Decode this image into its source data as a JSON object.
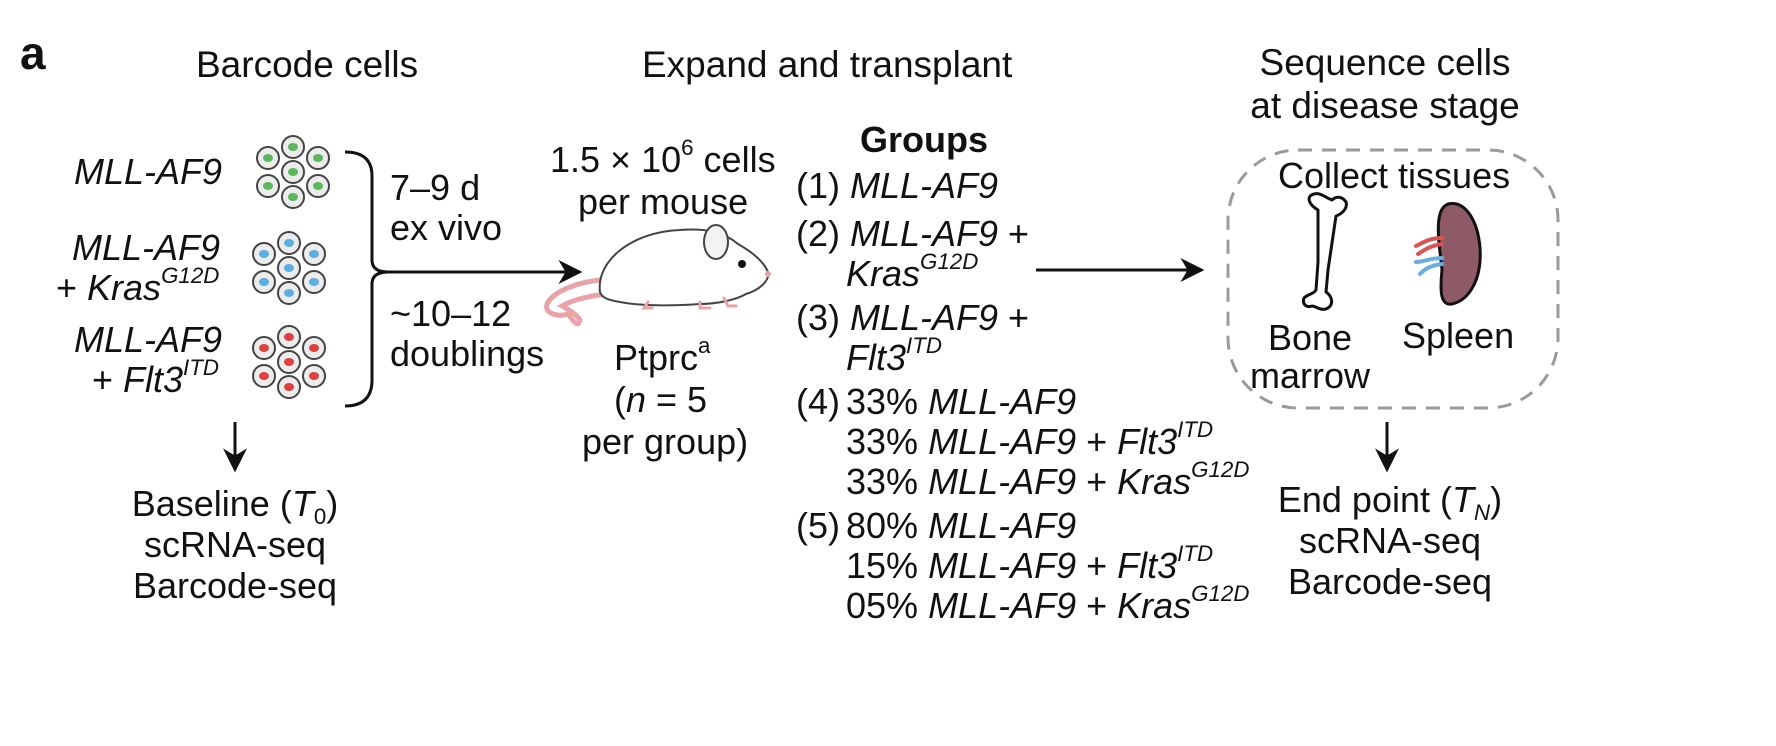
{
  "panel_letter": "a",
  "headers": {
    "barcode": "Barcode cells",
    "expand": "Expand and transplant",
    "sequence_l1": "Sequence cells",
    "sequence_l2": "at disease stage"
  },
  "cell_lines": [
    {
      "l1": "MLL-AF9",
      "l2_prefix": "",
      "l2": "",
      "l2_sup": "",
      "dot_color": "#5cb85c"
    },
    {
      "l1": "MLL-AF9",
      "l2_prefix": "+ ",
      "l2": "Kras",
      "l2_sup": "G12D",
      "dot_color": "#5aaee0"
    },
    {
      "l1": "MLL-AF9",
      "l2_prefix": "+ ",
      "l2": "Flt3",
      "l2_sup": "ITD",
      "dot_color": "#e0403f"
    }
  ],
  "culture": {
    "top_l1": "7–9 d",
    "top_l2": "ex vivo",
    "bottom_l1": "~10–12",
    "bottom_l2": "doublings"
  },
  "transplant": {
    "dose_prefix": "1.5 × 10",
    "dose_sup": "6",
    "dose_suffix": " cells",
    "dose_l2": "per mouse",
    "strain": "Ptprc",
    "strain_sup": "a",
    "n_open": "(",
    "n_var": "n",
    "n_rest": " = 5",
    "n_l2": "per group)"
  },
  "groups": {
    "title": "Groups",
    "g1": {
      "num": "(1) ",
      "name": "MLL-AF9"
    },
    "g2": {
      "num": "(2) ",
      "l1": "MLL-AF9",
      "l1_suffix": " +",
      "l2": "Kras",
      "l2_sup": "G12D"
    },
    "g3": {
      "num": "(3) ",
      "l1": "MLL-AF9",
      "l1_suffix": " +",
      "l2": "Flt3",
      "l2_sup": "ITD"
    },
    "g4": {
      "num": "(4) ",
      "rows": [
        {
          "pct": "33% ",
          "base": "MLL-AF9",
          "plus": "",
          "gene": "",
          "sup": ""
        },
        {
          "pct": "33% ",
          "base": "MLL-AF9",
          "plus": " + ",
          "gene": "Flt3",
          "sup": "ITD"
        },
        {
          "pct": "33% ",
          "base": "MLL-AF9",
          "plus": " + ",
          "gene": "Kras",
          "sup": "G12D"
        }
      ]
    },
    "g5": {
      "num": "(5) ",
      "rows": [
        {
          "pct": "80% ",
          "base": "MLL-AF9",
          "plus": "",
          "gene": "",
          "sup": ""
        },
        {
          "pct": "15% ",
          "base": "MLL-AF9",
          "plus": " + ",
          "gene": "Flt3",
          "sup": "ITD"
        },
        {
          "pct": "05% ",
          "base": "MLL-AF9",
          "plus": " + ",
          "gene": "Kras",
          "sup": "G12D"
        }
      ]
    }
  },
  "tissues": {
    "title": "Collect tissues",
    "bone_l1": "Bone",
    "bone_l2": "marrow",
    "spleen": "Spleen"
  },
  "baseline": {
    "l1_prefix": "Baseline (",
    "l1_var": "T",
    "l1_sub": "0",
    "l1_suffix": ")",
    "l2": "scRNA-seq",
    "l3": "Barcode-seq"
  },
  "endpoint": {
    "l1_prefix": "End point (",
    "l1_var": "T",
    "l1_sub": "N",
    "l1_suffix": ")",
    "l2": "scRNA-seq",
    "l3": "Barcode-seq"
  },
  "colors": {
    "cell_outline": "#444444",
    "cell_fill": "#ececec",
    "arrow": "#111111",
    "dashed_box": "#9a9a9a",
    "spleen": "#8e5a68",
    "vessel_red": "#d9534f",
    "vessel_blue": "#6aaee0",
    "mouse_tail": "#e8a3a8"
  }
}
